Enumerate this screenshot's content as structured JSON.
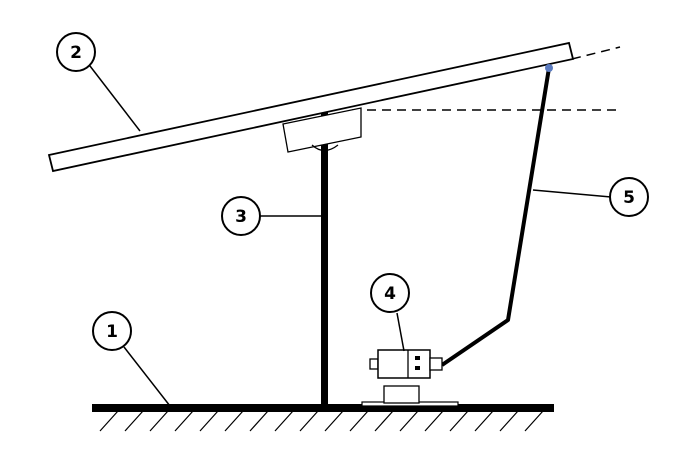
{
  "diagram": {
    "callouts": [
      {
        "id": "1",
        "label": "1"
      },
      {
        "id": "2",
        "label": "2"
      },
      {
        "id": "3",
        "label": "3"
      },
      {
        "id": "4",
        "label": "4"
      },
      {
        "id": "5",
        "label": "5"
      }
    ],
    "colors": {
      "stroke": "#000000",
      "background": "#ffffff",
      "pivot_dot": "#5b7bbf"
    }
  }
}
